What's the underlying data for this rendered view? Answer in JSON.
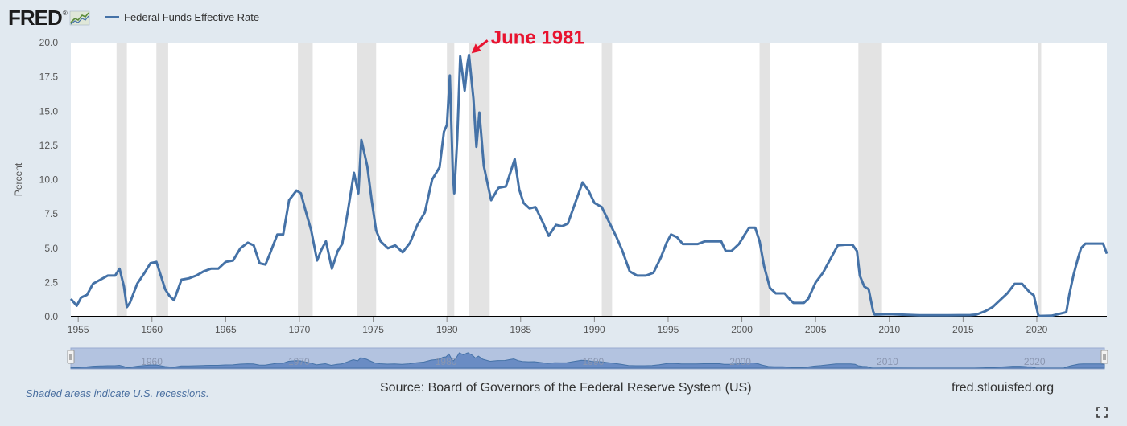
{
  "brand": {
    "logo_text": "FRED",
    "logo_mark": "®"
  },
  "footer": {
    "recession_note": "Shaded areas indicate U.S. recessions.",
    "source": "Source: Board of Governors of the Federal Reserve System (US)",
    "site": "fred.stlouisfed.org"
  },
  "annotation": {
    "label": "June 1981",
    "x": 1981.45,
    "y": 19.1,
    "color": "#e8132f"
  },
  "colors": {
    "series": "#4572a7",
    "recession": "#e3e3e3",
    "navigator_fill": "#b3c3e0",
    "background": "#e1e9f0"
  },
  "chart_data": {
    "type": "line",
    "title": "",
    "xlabel": "",
    "ylabel": "Percent",
    "xlim": [
      1954.5,
      2024.75
    ],
    "ylim": [
      0,
      20
    ],
    "yticks": [
      "0.0",
      "2.5",
      "5.0",
      "7.5",
      "10.0",
      "12.5",
      "15.0",
      "17.5",
      "20.0"
    ],
    "xticks": [
      "1955",
      "1960",
      "1965",
      "1970",
      "1975",
      "1980",
      "1985",
      "1990",
      "1995",
      "2000",
      "2005",
      "2010",
      "2015",
      "2020"
    ],
    "navigator_ticks": [
      "1960",
      "1970",
      "1980",
      "1990",
      "2000",
      "2010",
      "2020"
    ],
    "grid": false,
    "legend": "top-left",
    "recessions": [
      [
        1957.6,
        1958.3
      ],
      [
        1960.3,
        1961.1
      ],
      [
        1969.9,
        1970.9
      ],
      [
        1973.9,
        1975.2
      ],
      [
        1980.0,
        1980.5
      ],
      [
        1981.5,
        1982.9
      ],
      [
        1990.5,
        1991.2
      ],
      [
        2001.2,
        2001.9
      ],
      [
        2007.9,
        2009.5
      ],
      [
        2020.1,
        2020.3
      ]
    ],
    "series": [
      {
        "name": "Federal Funds Effective Rate",
        "x": [
          1954.5,
          1954.9,
          1955.2,
          1955.6,
          1956.0,
          1956.5,
          1957.0,
          1957.5,
          1957.8,
          1958.1,
          1958.3,
          1958.5,
          1959.0,
          1959.5,
          1959.9,
          1960.3,
          1960.6,
          1960.9,
          1961.2,
          1961.5,
          1962.0,
          1962.5,
          1963.0,
          1963.5,
          1964.0,
          1964.5,
          1965.0,
          1965.5,
          1966.0,
          1966.5,
          1966.9,
          1967.3,
          1967.7,
          1968.0,
          1968.5,
          1968.9,
          1969.3,
          1969.8,
          1970.1,
          1970.4,
          1970.8,
          1971.2,
          1971.5,
          1971.8,
          1972.2,
          1972.6,
          1972.9,
          1973.3,
          1973.7,
          1974.0,
          1974.2,
          1974.6,
          1974.9,
          1975.2,
          1975.5,
          1976.0,
          1976.5,
          1977.0,
          1977.5,
          1978.0,
          1978.5,
          1979.0,
          1979.5,
          1979.8,
          1980.0,
          1980.2,
          1980.4,
          1980.5,
          1980.7,
          1980.9,
          1981.2,
          1981.4,
          1981.5,
          1981.6,
          1981.8,
          1982.0,
          1982.2,
          1982.5,
          1982.7,
          1983.0,
          1983.5,
          1984.0,
          1984.6,
          1984.9,
          1985.2,
          1985.6,
          1986.0,
          1986.5,
          1986.9,
          1987.4,
          1987.8,
          1988.2,
          1988.6,
          1989.2,
          1989.6,
          1990.0,
          1990.5,
          1991.0,
          1991.5,
          1991.9,
          1992.4,
          1992.9,
          1993.5,
          1994.0,
          1994.5,
          1994.9,
          1995.2,
          1995.6,
          1996.0,
          1996.5,
          1997.0,
          1997.5,
          1998.0,
          1998.6,
          1998.9,
          1999.3,
          1999.8,
          2000.2,
          2000.5,
          2000.9,
          2001.2,
          2001.5,
          2001.9,
          2002.3,
          2002.9,
          2003.3,
          2003.5,
          2004.2,
          2004.5,
          2005.0,
          2005.5,
          2006.0,
          2006.5,
          2007.0,
          2007.5,
          2007.8,
          2008.0,
          2008.3,
          2008.6,
          2008.9,
          2009.0,
          2010.0,
          2012.0,
          2014.0,
          2015.5,
          2015.9,
          2016.5,
          2017.0,
          2017.5,
          2018.0,
          2018.5,
          2019.0,
          2019.5,
          2019.8,
          2020.1,
          2020.2,
          2021.0,
          2022.0,
          2022.2,
          2022.5,
          2022.8,
          2023.0,
          2023.3,
          2023.6,
          2024.5,
          2024.75
        ],
        "values": [
          1.3,
          0.8,
          1.4,
          1.6,
          2.4,
          2.7,
          3.0,
          3.0,
          3.5,
          2.2,
          0.7,
          1.0,
          2.4,
          3.2,
          3.9,
          4.0,
          3.0,
          2.0,
          1.5,
          1.2,
          2.7,
          2.8,
          3.0,
          3.3,
          3.5,
          3.5,
          4.0,
          4.1,
          5.0,
          5.4,
          5.2,
          3.9,
          3.8,
          4.6,
          6.0,
          6.0,
          8.5,
          9.2,
          9.0,
          7.8,
          6.3,
          4.1,
          4.9,
          5.5,
          3.5,
          4.8,
          5.3,
          7.8,
          10.5,
          9.0,
          12.9,
          11.0,
          8.5,
          6.3,
          5.5,
          5.0,
          5.2,
          4.7,
          5.4,
          6.7,
          7.6,
          10.0,
          10.9,
          13.5,
          14.0,
          17.6,
          10.5,
          9.0,
          13.0,
          19.0,
          16.5,
          18.5,
          19.1,
          18.0,
          15.9,
          12.4,
          14.9,
          11.0,
          10.0,
          8.5,
          9.4,
          9.5,
          11.5,
          9.3,
          8.3,
          7.9,
          8.0,
          6.9,
          5.9,
          6.7,
          6.6,
          6.8,
          8.0,
          9.8,
          9.2,
          8.3,
          8.0,
          6.9,
          5.8,
          4.8,
          3.3,
          3.0,
          3.0,
          3.2,
          4.3,
          5.4,
          6.0,
          5.8,
          5.3,
          5.3,
          5.3,
          5.5,
          5.5,
          5.5,
          4.8,
          4.8,
          5.3,
          6.0,
          6.5,
          6.5,
          5.5,
          3.7,
          2.1,
          1.7,
          1.7,
          1.2,
          1.0,
          1.0,
          1.3,
          2.5,
          3.2,
          4.2,
          5.2,
          5.25,
          5.25,
          4.8,
          3.0,
          2.2,
          2.0,
          0.4,
          0.15,
          0.18,
          0.1,
          0.1,
          0.12,
          0.15,
          0.4,
          0.7,
          1.2,
          1.7,
          2.4,
          2.4,
          1.8,
          1.55,
          0.1,
          0.05,
          0.07,
          0.33,
          1.6,
          3.1,
          4.3,
          5.0,
          5.33,
          5.33,
          5.33,
          4.6
        ]
      }
    ]
  }
}
